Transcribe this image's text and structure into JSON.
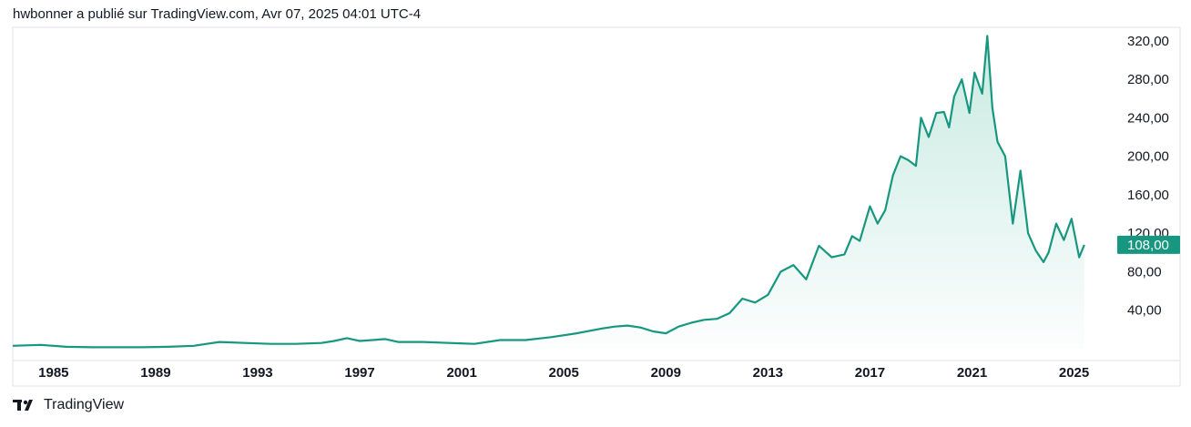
{
  "header": {
    "text": "hwbonner a publié sur TradingView.com, Avr 07, 2025 04:01 UTC-4"
  },
  "footer": {
    "brand": "TradingView",
    "logo_icon": "tradingview-logo-icon"
  },
  "colors": {
    "line": "#17977f",
    "fill_top": "#bfe6dc",
    "badge": "#17977f",
    "border": "#e0e3eb"
  },
  "chart_data": {
    "type": "area",
    "title": "",
    "xlabel": "",
    "ylabel": "",
    "xlim": [
      1983.4,
      2026.3
    ],
    "ylim": [
      0,
      334
    ],
    "grid": false,
    "legend": "none",
    "y_ticks": [
      {
        "value": 40,
        "label": "40,00"
      },
      {
        "value": 80,
        "label": "80,00"
      },
      {
        "value": 120,
        "label": "120,00"
      },
      {
        "value": 160,
        "label": "160,00"
      },
      {
        "value": 200,
        "label": "200,00"
      },
      {
        "value": 240,
        "label": "240,00"
      },
      {
        "value": 280,
        "label": "280,00"
      },
      {
        "value": 320,
        "label": "320,00"
      }
    ],
    "x_ticks": [
      {
        "value": 1985,
        "label": "1985"
      },
      {
        "value": 1989,
        "label": "1989"
      },
      {
        "value": 1993,
        "label": "1993"
      },
      {
        "value": 1997,
        "label": "1997"
      },
      {
        "value": 2001,
        "label": "2001"
      },
      {
        "value": 2005,
        "label": "2005"
      },
      {
        "value": 2009,
        "label": "2009"
      },
      {
        "value": 2013,
        "label": "2013"
      },
      {
        "value": 2017,
        "label": "2017"
      },
      {
        "value": 2021,
        "label": "2021"
      },
      {
        "value": 2025,
        "label": "2025"
      }
    ],
    "last_value": {
      "value": 108,
      "label": "108,00"
    },
    "series": [
      {
        "x": [
          1983.4,
          1984.5,
          1985.5,
          1986.5,
          1987.5,
          1988.5,
          1989.5,
          1990.5,
          1991.0,
          1991.5,
          1992.5,
          1993.5,
          1994.5,
          1995.5,
          1996.0,
          1996.5,
          1997.0,
          1997.5,
          1998.0,
          1998.5,
          1999.5,
          2000.5,
          2001.5,
          2002.5,
          2003.5,
          2004.5,
          2005.5,
          2006.5,
          2007.0,
          2007.5,
          2008.0,
          2008.5,
          2009.0,
          2009.5,
          2010.0,
          2010.5,
          2011.0,
          2011.5,
          2012.0,
          2012.5,
          2013.0,
          2013.5,
          2014.0,
          2014.5,
          2015.0,
          2015.5,
          2016.0,
          2016.3,
          2016.6,
          2016.8,
          2017.0,
          2017.3,
          2017.6,
          2017.9,
          2018.2,
          2018.5,
          2018.8,
          2019.0,
          2019.3,
          2019.6,
          2019.9,
          2020.1,
          2020.3,
          2020.6,
          2020.9,
          2021.1,
          2021.4,
          2021.6,
          2021.8,
          2022.0,
          2022.3,
          2022.6,
          2022.9,
          2023.2,
          2023.5,
          2023.8,
          2024.0,
          2024.3,
          2024.6,
          2024.9,
          2025.2,
          2025.4
        ],
        "y": [
          3,
          4,
          2,
          1.5,
          1.5,
          1.5,
          2,
          3,
          5,
          7,
          6,
          5,
          5,
          6,
          8,
          11,
          8,
          9,
          10,
          7,
          7,
          6,
          5,
          9,
          9,
          12,
          16,
          21,
          23,
          24,
          22,
          18,
          16,
          23,
          27,
          30,
          31,
          37,
          52,
          48,
          56,
          80,
          87,
          72,
          107,
          95,
          98,
          117,
          112,
          130,
          148,
          130,
          144,
          180,
          200,
          196,
          190,
          240,
          220,
          245,
          246,
          230,
          262,
          280,
          245,
          287,
          265,
          325,
          250,
          215,
          200,
          130,
          185,
          120,
          102,
          90,
          100,
          130,
          113,
          135,
          95,
          108
        ]
      }
    ]
  }
}
